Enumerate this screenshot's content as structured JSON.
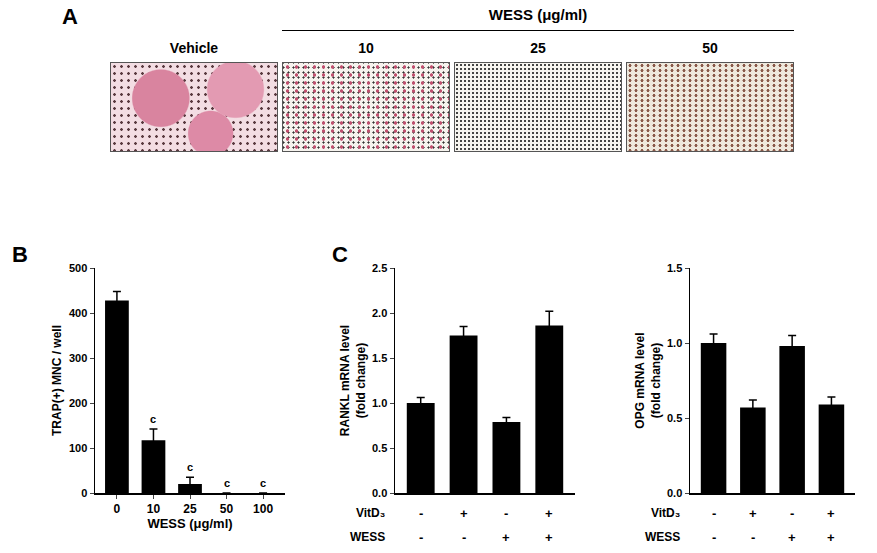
{
  "panel_a": {
    "panel": "A",
    "group_label": "WESS (μg/ml)",
    "images": [
      "Vehicle",
      "10",
      "25",
      "50"
    ]
  },
  "chart_data": [
    {
      "type": "bar",
      "panel": "B",
      "categories": [
        "0",
        "10",
        "25",
        "50",
        "100"
      ],
      "values": [
        428,
        117,
        20,
        0,
        0
      ],
      "errors": [
        20,
        25,
        15,
        0,
        0
      ],
      "significance": [
        null,
        "c",
        "c",
        "c",
        "c"
      ],
      "color": "#000000",
      "xlabel": "WESS (μg/ml)",
      "ylabel": [
        "TRAP(+) MNC / well"
      ],
      "ylim": [
        0,
        500
      ],
      "yticks": [
        0,
        100,
        200,
        300,
        400,
        500
      ]
    },
    {
      "type": "bar",
      "panel": "C",
      "x_table": [
        {
          "name": "VitD₃",
          "values": [
            "-",
            "+",
            "-",
            "+"
          ]
        },
        {
          "name": "WESS",
          "values": [
            "-",
            "-",
            "+",
            "+"
          ]
        }
      ],
      "values": [
        1.0,
        1.75,
        0.79,
        1.86
      ],
      "errors": [
        0.06,
        0.1,
        0.05,
        0.16
      ],
      "color": "#000000",
      "ylabel": [
        "RANKL mRNA level",
        "(fold change)"
      ],
      "ylim": [
        0,
        2.5
      ],
      "yticks": [
        {
          "value": 0,
          "label": "0.0"
        },
        0.5,
        {
          "value": 1,
          "label": "1.0"
        },
        1.5,
        {
          "value": 2,
          "label": "2.0"
        },
        2.5
      ]
    },
    {
      "type": "bar",
      "x_table": [
        {
          "name": "VitD₃",
          "values": [
            "-",
            "+",
            "-",
            "+"
          ]
        },
        {
          "name": "WESS",
          "values": [
            "-",
            "-",
            "+",
            "+"
          ]
        }
      ],
      "values": [
        1.0,
        0.57,
        0.98,
        0.59
      ],
      "errors": [
        0.06,
        0.05,
        0.07,
        0.05
      ],
      "color": "#000000",
      "ylabel": [
        "OPG mRNA level",
        "(fold change)"
      ],
      "ylim": [
        0,
        1.5
      ],
      "yticks": [
        {
          "value": 0,
          "label": "0.0"
        },
        0.5,
        {
          "value": 1,
          "label": "1.0"
        },
        1.5
      ]
    }
  ]
}
